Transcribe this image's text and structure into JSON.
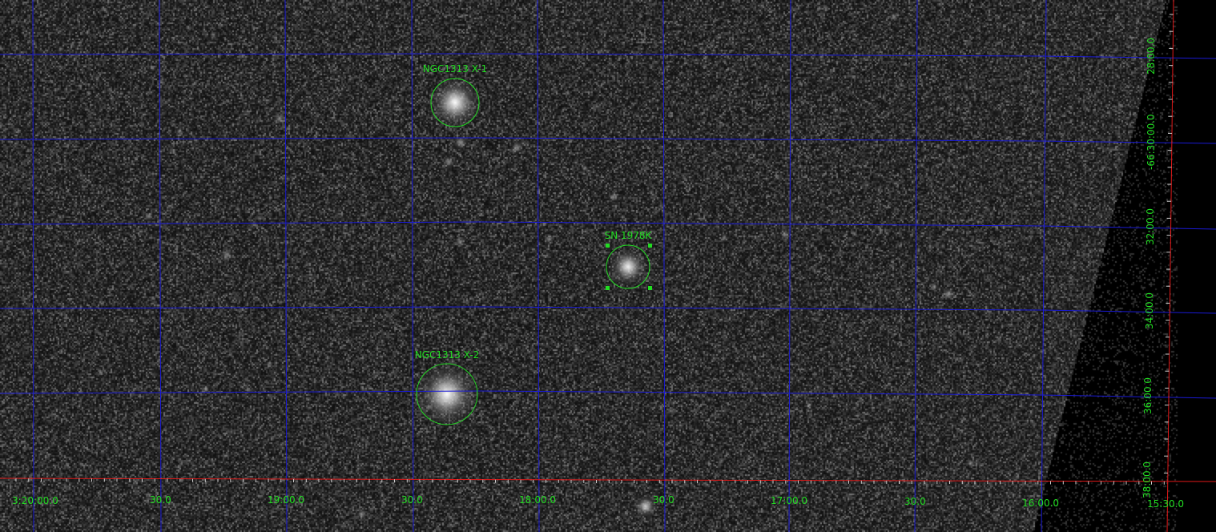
{
  "regions": [
    {
      "id": "x1",
      "label": "NGC1313 X-1",
      "selected": false
    },
    {
      "id": "sn",
      "label": "SN 1978K",
      "selected": true
    },
    {
      "id": "x2",
      "label": "NGC1313 X-2",
      "selected": false
    }
  ],
  "ra_labels": [
    "3:20:00.0",
    "30.0",
    "19:00.0",
    "30.0",
    "18:00.0",
    "30.0",
    "17:00.0",
    "30.0",
    "16:00.0",
    "15:30.0"
  ],
  "dec_labels": [
    "28:00.0",
    "-66:30:00.0",
    "32:00.0",
    "34:00.0",
    "36:00.0",
    "38:00.0"
  ],
  "colors": {
    "background": "#000000",
    "region": "#22dd22",
    "grid": "#1a1ad6",
    "axis": "#e01818",
    "label": "#22dd22"
  }
}
